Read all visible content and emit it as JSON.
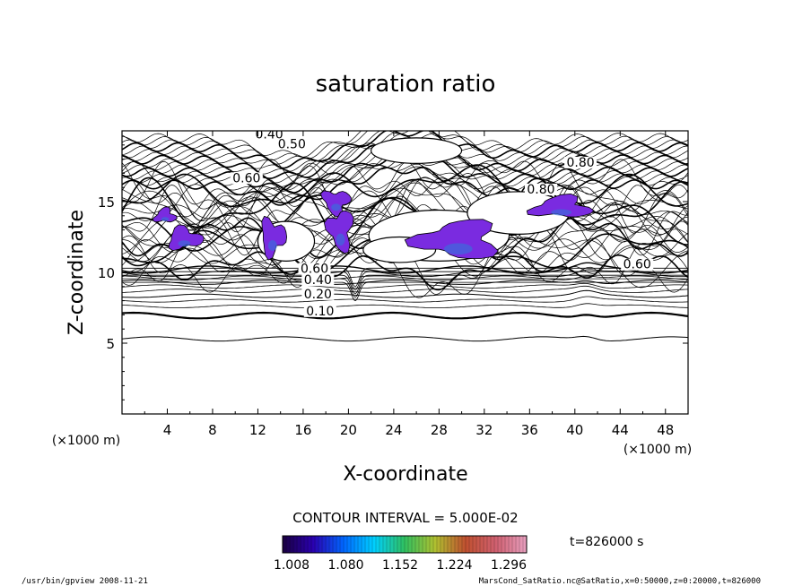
{
  "chart_data": {
    "type": "contour",
    "title": "saturation ratio",
    "xlabel": "X-coordinate",
    "ylabel": "Z-coordinate",
    "x_unit": "(×1000 m)",
    "y_unit": "(×1000 m)",
    "xlim": [
      0,
      50
    ],
    "ylim": [
      0,
      20
    ],
    "x_ticks": [
      "4",
      "8",
      "12",
      "16",
      "20",
      "24",
      "28",
      "32",
      "36",
      "40",
      "44",
      "48"
    ],
    "y_ticks": [
      "5",
      "10",
      "15"
    ],
    "contour_interval_text": "CONTOUR INTERVAL = 5.000E-02",
    "time_text": "t=826000 s",
    "contour_labels": [
      {
        "text": "0.10",
        "x": 17.5,
        "z": 7.1
      },
      {
        "text": "0.20",
        "x": 17.3,
        "z": 8.3
      },
      {
        "text": "0.40",
        "x": 17.3,
        "z": 9.3
      },
      {
        "text": "0.60",
        "x": 17.0,
        "z": 10.1
      },
      {
        "text": "0.40",
        "x": 13.0,
        "z": 19.6
      },
      {
        "text": "0.50",
        "x": 15.0,
        "z": 18.9
      },
      {
        "text": "0.60",
        "x": 11.0,
        "z": 16.5
      },
      {
        "text": "0.80",
        "x": 37.0,
        "z": 15.7
      },
      {
        "text": "0.60",
        "x": 45.5,
        "z": 10.4
      },
      {
        "text": "0.80",
        "x": 40.5,
        "z": 17.6
      }
    ],
    "supersaturated_regions": [
      {
        "x": 3.8,
        "z": 14.0
      },
      {
        "x": 5.5,
        "z": 12.4
      },
      {
        "x": 13.3,
        "z": 12.5
      },
      {
        "x": 18.9,
        "z": 15.0
      },
      {
        "x": 19.3,
        "z": 13.0
      },
      {
        "x": 29.7,
        "z": 12.3
      },
      {
        "x": 38.8,
        "z": 14.6
      }
    ],
    "colorbar": {
      "colormap": "rainbow",
      "tick_labels": [
        "1.008",
        "1.080",
        "1.152",
        "1.224",
        "1.296"
      ],
      "colors": [
        "#1a0040",
        "#2a00b0",
        "#0066ff",
        "#00d0ff",
        "#30c060",
        "#b0c030",
        "#c05030",
        "#d06070",
        "#e8a0c0"
      ]
    },
    "fill_color": "#7a2be0"
  },
  "footer": {
    "left": "/usr/bin/gpview   2008-11-21",
    "right": "MarsCond_SatRatio.nc@SatRatio,x=0:50000,z=0:20000,t=826000"
  }
}
